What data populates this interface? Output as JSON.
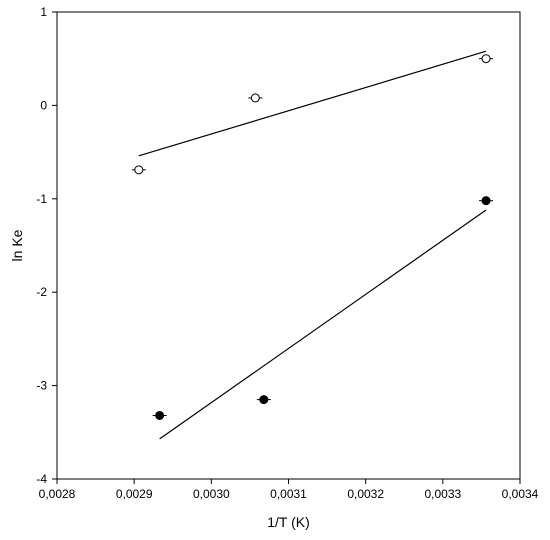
{
  "chart_data": {
    "type": "scatter",
    "title": "",
    "xlabel": "1/T (K)",
    "ylabel": "ln Ke",
    "xlim": [
      0.0028,
      0.0034
    ],
    "ylim": [
      -4,
      1
    ],
    "x_ticks": [
      0.0028,
      0.0029,
      0.003,
      0.0031,
      0.0032,
      0.0033,
      0.0034
    ],
    "x_tick_labels": [
      "0,0028",
      "0,0029",
      "0,0030",
      "0,0031",
      "0,0032",
      "0,0033",
      "0,0034"
    ],
    "y_ticks": [
      -4,
      -3,
      -2,
      -1,
      0,
      1
    ],
    "y_tick_labels": [
      "-4",
      "-3",
      "-2",
      "-1",
      "0",
      "1"
    ],
    "grid": false,
    "series": [
      {
        "marker": "open-circle",
        "color": "#000000",
        "points": [
          {
            "x": 0.002906,
            "y": -0.69
          },
          {
            "x": 0.003057,
            "y": 0.08
          },
          {
            "x": 0.003356,
            "y": 0.5
          }
        ],
        "fit_line": {
          "x": [
            0.002906,
            0.003356
          ],
          "y": [
            -0.54,
            0.58
          ]
        }
      },
      {
        "marker": "filled-circle",
        "color": "#000000",
        "points": [
          {
            "x": 0.002933,
            "y": -3.32
          },
          {
            "x": 0.003068,
            "y": -3.15
          },
          {
            "x": 0.003356,
            "y": -1.02
          }
        ],
        "fit_line": {
          "x": [
            0.002933,
            0.003356
          ],
          "y": [
            -3.57,
            -1.12
          ]
        }
      }
    ]
  }
}
